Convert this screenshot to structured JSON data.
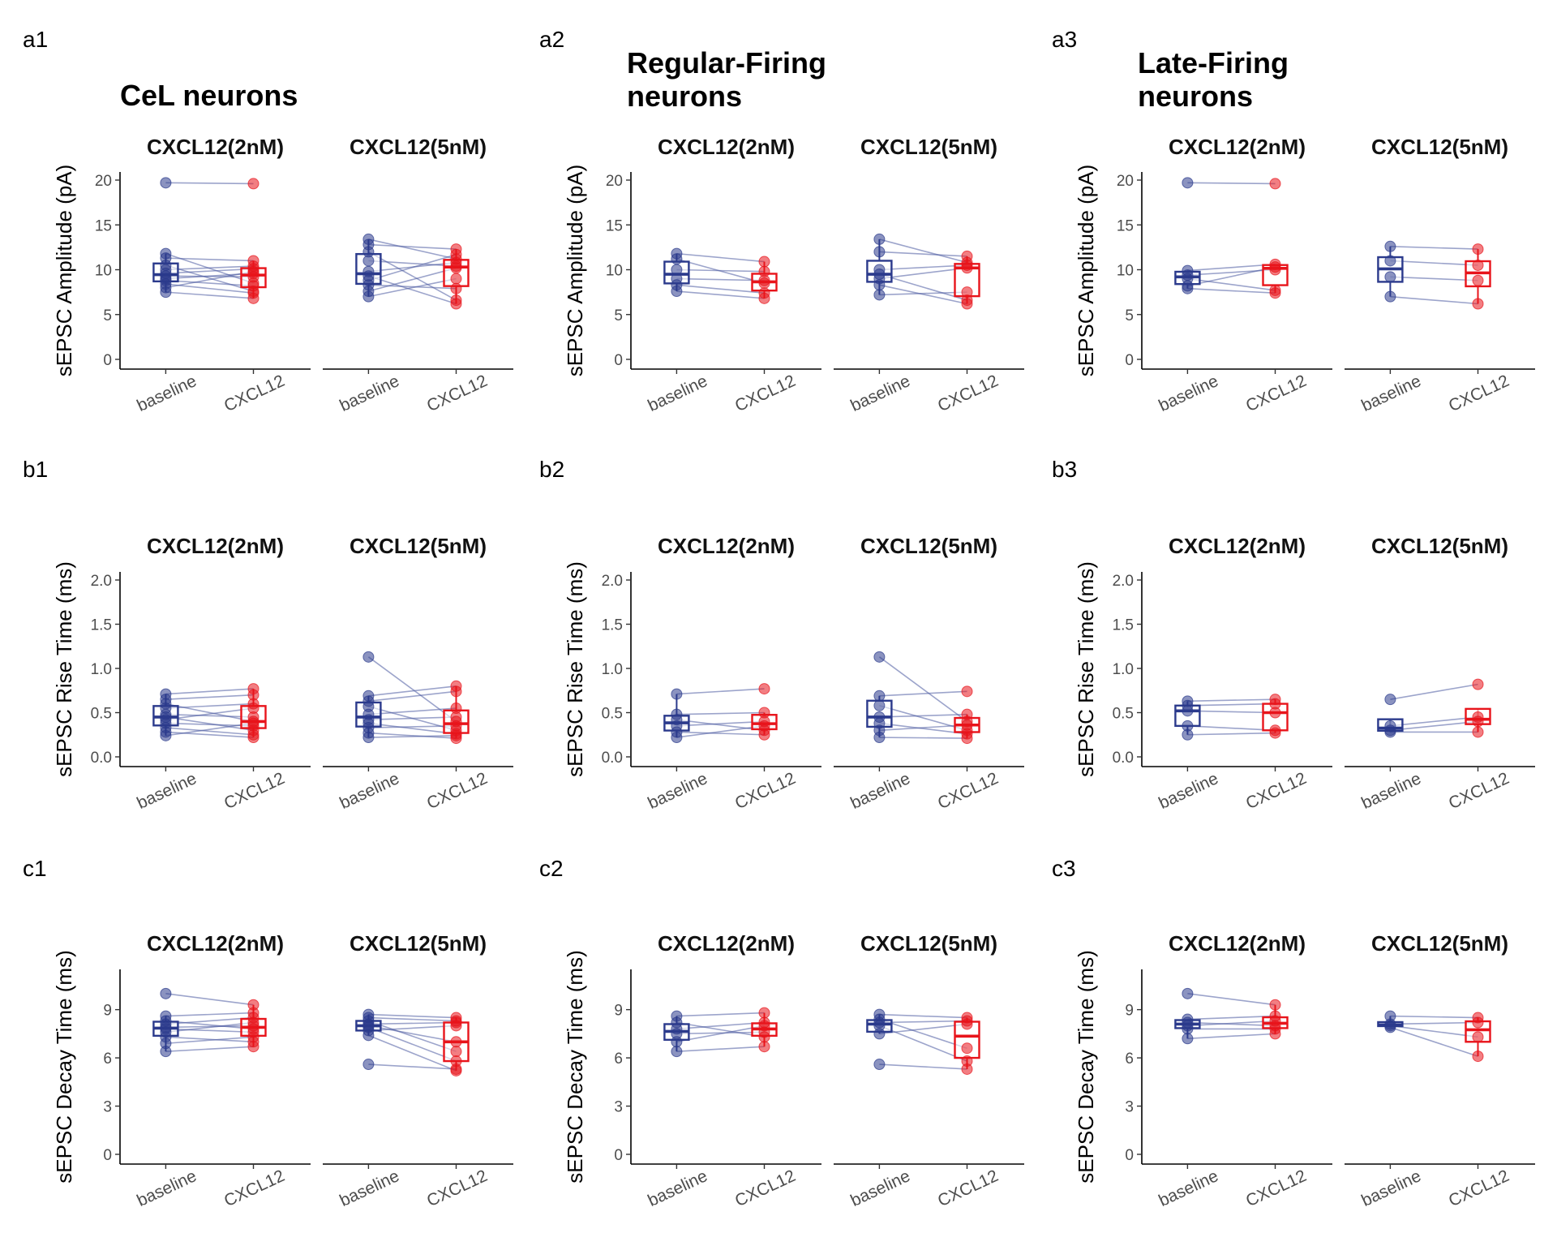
{
  "colors": {
    "baseline": "#2b3a8c",
    "cxcl12": "#e8141b",
    "pair_line": "#4a5aa0"
  },
  "chart_data": [
    {
      "panel": "a1",
      "type": "box-paired",
      "group_title": "CeL neurons",
      "ylabel": "sEPSC Amplitude (pA)",
      "ylim": [
        0,
        20
      ],
      "yticks": [
        "0",
        "5",
        "10",
        "15",
        "20"
      ],
      "facets": [
        {
          "title": "CXCL12(2nM)",
          "categories": [
            "baseline",
            "CXCL12"
          ],
          "baseline": [
            19.7,
            11.8,
            11.3,
            10.5,
            10.0,
            9.6,
            9.3,
            9.0,
            8.8,
            8.4,
            8.0,
            7.5
          ],
          "cxcl12": [
            19.6,
            8.5,
            11.0,
            7.6,
            10.4,
            10.1,
            9.2,
            9.6,
            8.2,
            7.4,
            9.8,
            6.8
          ]
        },
        {
          "title": "CXCL12(5nM)",
          "categories": [
            "baseline",
            "CXCL12"
          ],
          "baseline": [
            13.4,
            12.8,
            12.0,
            11.0,
            9.8,
            9.3,
            8.8,
            8.3,
            7.6,
            7.0
          ],
          "cxcl12": [
            11.2,
            12.3,
            6.6,
            10.4,
            10.8,
            6.2,
            11.7,
            7.9,
            10.2,
            9.0
          ]
        }
      ]
    },
    {
      "panel": "a2",
      "type": "box-paired",
      "group_title": "Regular-Firing neurons",
      "ylabel": "sEPSC Amplitude (pA)",
      "ylim": [
        0,
        20
      ],
      "yticks": [
        "0",
        "5",
        "10",
        "15",
        "20"
      ],
      "facets": [
        {
          "title": "CXCL12(2nM)",
          "categories": [
            "baseline",
            "CXCL12"
          ],
          "baseline": [
            11.8,
            11.2,
            10.0,
            9.0,
            8.3,
            7.6
          ],
          "cxcl12": [
            10.9,
            8.5,
            9.8,
            8.8,
            7.4,
            6.8
          ]
        },
        {
          "title": "CXCL12(5nM)",
          "categories": [
            "baseline",
            "CXCL12"
          ],
          "baseline": [
            13.4,
            12.0,
            10.0,
            9.5,
            9.0,
            8.3,
            7.2
          ],
          "cxcl12": [
            10.8,
            11.5,
            10.5,
            6.6,
            10.2,
            6.2,
            7.5
          ]
        }
      ]
    },
    {
      "panel": "a3",
      "type": "box-paired",
      "group_title": "Late-Firing neurons",
      "ylabel": "sEPSC Amplitude (pA)",
      "ylim": [
        0,
        20
      ],
      "yticks": [
        "0",
        "5",
        "10",
        "15",
        "20"
      ],
      "facets": [
        {
          "title": "CXCL12(2nM)",
          "categories": [
            "baseline",
            "CXCL12"
          ],
          "baseline": [
            19.7,
            9.9,
            9.4,
            9.0,
            8.2,
            7.9
          ],
          "cxcl12": [
            19.6,
            10.6,
            10.0,
            7.7,
            10.3,
            7.4
          ]
        },
        {
          "title": "CXCL12(5nM)",
          "categories": [
            "baseline",
            "CXCL12"
          ],
          "baseline": [
            12.6,
            11.0,
            9.2,
            7.0
          ],
          "cxcl12": [
            12.3,
            10.5,
            8.8,
            6.2
          ]
        }
      ]
    },
    {
      "panel": "b1",
      "type": "box-paired",
      "group_title": "",
      "ylabel": "sEPSC Rise Time (ms)",
      "ylim": [
        0,
        2.0
      ],
      "yticks": [
        "0.0",
        "0.5",
        "1.0",
        "1.5",
        "2.0"
      ],
      "facets": [
        {
          "title": "CXCL12(2nM)",
          "categories": [
            "baseline",
            "CXCL12"
          ],
          "baseline": [
            0.71,
            0.65,
            0.6,
            0.55,
            0.48,
            0.45,
            0.42,
            0.38,
            0.33,
            0.28,
            0.24
          ],
          "cxcl12": [
            0.77,
            0.7,
            0.4,
            0.6,
            0.45,
            0.3,
            0.55,
            0.35,
            0.25,
            0.22,
            0.38
          ]
        },
        {
          "title": "CXCL12(5nM)",
          "categories": [
            "baseline",
            "CXCL12"
          ],
          "baseline": [
            1.13,
            0.69,
            0.63,
            0.57,
            0.48,
            0.42,
            0.38,
            0.33,
            0.27,
            0.22
          ],
          "cxcl12": [
            0.4,
            0.8,
            0.74,
            0.3,
            0.55,
            0.45,
            0.26,
            0.35,
            0.21,
            0.24
          ]
        }
      ]
    },
    {
      "panel": "b2",
      "type": "box-paired",
      "group_title": "",
      "ylabel": "sEPSC Rise Time (ms)",
      "ylim": [
        0,
        2.0
      ],
      "yticks": [
        "0.0",
        "0.5",
        "1.0",
        "1.5",
        "2.0"
      ],
      "facets": [
        {
          "title": "CXCL12(2nM)",
          "categories": [
            "baseline",
            "CXCL12"
          ],
          "baseline": [
            0.71,
            0.48,
            0.42,
            0.35,
            0.28,
            0.22
          ],
          "cxcl12": [
            0.77,
            0.5,
            0.3,
            0.4,
            0.25,
            0.35
          ]
        },
        {
          "title": "CXCL12(5nM)",
          "categories": [
            "baseline",
            "CXCL12"
          ],
          "baseline": [
            1.13,
            0.69,
            0.58,
            0.45,
            0.38,
            0.3,
            0.22
          ],
          "cxcl12": [
            0.4,
            0.74,
            0.3,
            0.48,
            0.26,
            0.36,
            0.21
          ]
        }
      ]
    },
    {
      "panel": "b3",
      "type": "box-paired",
      "group_title": "",
      "ylabel": "sEPSC Rise Time (ms)",
      "ylim": [
        0,
        2.0
      ],
      "yticks": [
        "0.0",
        "0.5",
        "1.0",
        "1.5",
        "2.0"
      ],
      "facets": [
        {
          "title": "CXCL12(2nM)",
          "categories": [
            "baseline",
            "CXCL12"
          ],
          "baseline": [
            0.63,
            0.58,
            0.52,
            0.35,
            0.25
          ],
          "cxcl12": [
            0.65,
            0.6,
            0.5,
            0.3,
            0.27
          ]
        },
        {
          "title": "CXCL12(5nM)",
          "categories": [
            "baseline",
            "CXCL12"
          ],
          "baseline": [
            0.65,
            0.35,
            0.3,
            0.28
          ],
          "cxcl12": [
            0.82,
            0.45,
            0.4,
            0.28
          ]
        }
      ]
    },
    {
      "panel": "c1",
      "type": "box-paired",
      "group_title": "",
      "ylabel": "sEPSC Decay Time (ms)",
      "ylim": [
        0,
        11
      ],
      "yticks": [
        "0",
        "3",
        "6",
        "9"
      ],
      "facets": [
        {
          "title": "CXCL12(2nM)",
          "categories": [
            "baseline",
            "CXCL12"
          ],
          "baseline": [
            10.0,
            8.6,
            8.3,
            8.1,
            7.9,
            7.8,
            7.6,
            7.3,
            6.9,
            6.4
          ],
          "cxcl12": [
            9.3,
            8.8,
            7.8,
            8.5,
            8.0,
            7.6,
            8.2,
            7.0,
            7.3,
            6.7
          ]
        },
        {
          "title": "CXCL12(5nM)",
          "categories": [
            "baseline",
            "CXCL12"
          ],
          "baseline": [
            8.7,
            8.5,
            8.3,
            8.1,
            8.0,
            7.9,
            7.7,
            7.4,
            5.6
          ],
          "cxcl12": [
            8.5,
            8.3,
            6.4,
            8.2,
            7.0,
            5.8,
            8.0,
            5.2,
            5.3
          ]
        }
      ]
    },
    {
      "panel": "c2",
      "type": "box-paired",
      "group_title": "",
      "ylabel": "sEPSC Decay Time (ms)",
      "ylim": [
        0,
        11
      ],
      "yticks": [
        "0",
        "3",
        "6",
        "9"
      ],
      "facets": [
        {
          "title": "CXCL12(2nM)",
          "categories": [
            "baseline",
            "CXCL12"
          ],
          "baseline": [
            8.6,
            8.2,
            7.8,
            7.5,
            7.0,
            6.4
          ],
          "cxcl12": [
            8.8,
            7.3,
            8.2,
            7.6,
            8.0,
            6.7
          ]
        },
        {
          "title": "CXCL12(5nM)",
          "categories": [
            "baseline",
            "CXCL12"
          ],
          "baseline": [
            8.7,
            8.4,
            8.2,
            8.0,
            7.5,
            5.6
          ],
          "cxcl12": [
            8.5,
            6.6,
            8.3,
            5.8,
            8.1,
            5.3
          ]
        }
      ]
    },
    {
      "panel": "c3",
      "type": "box-paired",
      "group_title": "",
      "ylabel": "sEPSC Decay Time (ms)",
      "ylim": [
        0,
        11
      ],
      "yticks": [
        "0",
        "3",
        "6",
        "9"
      ],
      "facets": [
        {
          "title": "CXCL12(2nM)",
          "categories": [
            "baseline",
            "CXCL12"
          ],
          "baseline": [
            10.0,
            8.4,
            8.2,
            8.0,
            7.8,
            7.2
          ],
          "cxcl12": [
            9.3,
            8.6,
            8.0,
            8.3,
            7.8,
            7.5
          ]
        },
        {
          "title": "CXCL12(5nM)",
          "categories": [
            "baseline",
            "CXCL12"
          ],
          "baseline": [
            8.6,
            8.1,
            8.0,
            7.9
          ],
          "cxcl12": [
            8.5,
            8.2,
            7.3,
            6.1
          ]
        }
      ]
    }
  ]
}
